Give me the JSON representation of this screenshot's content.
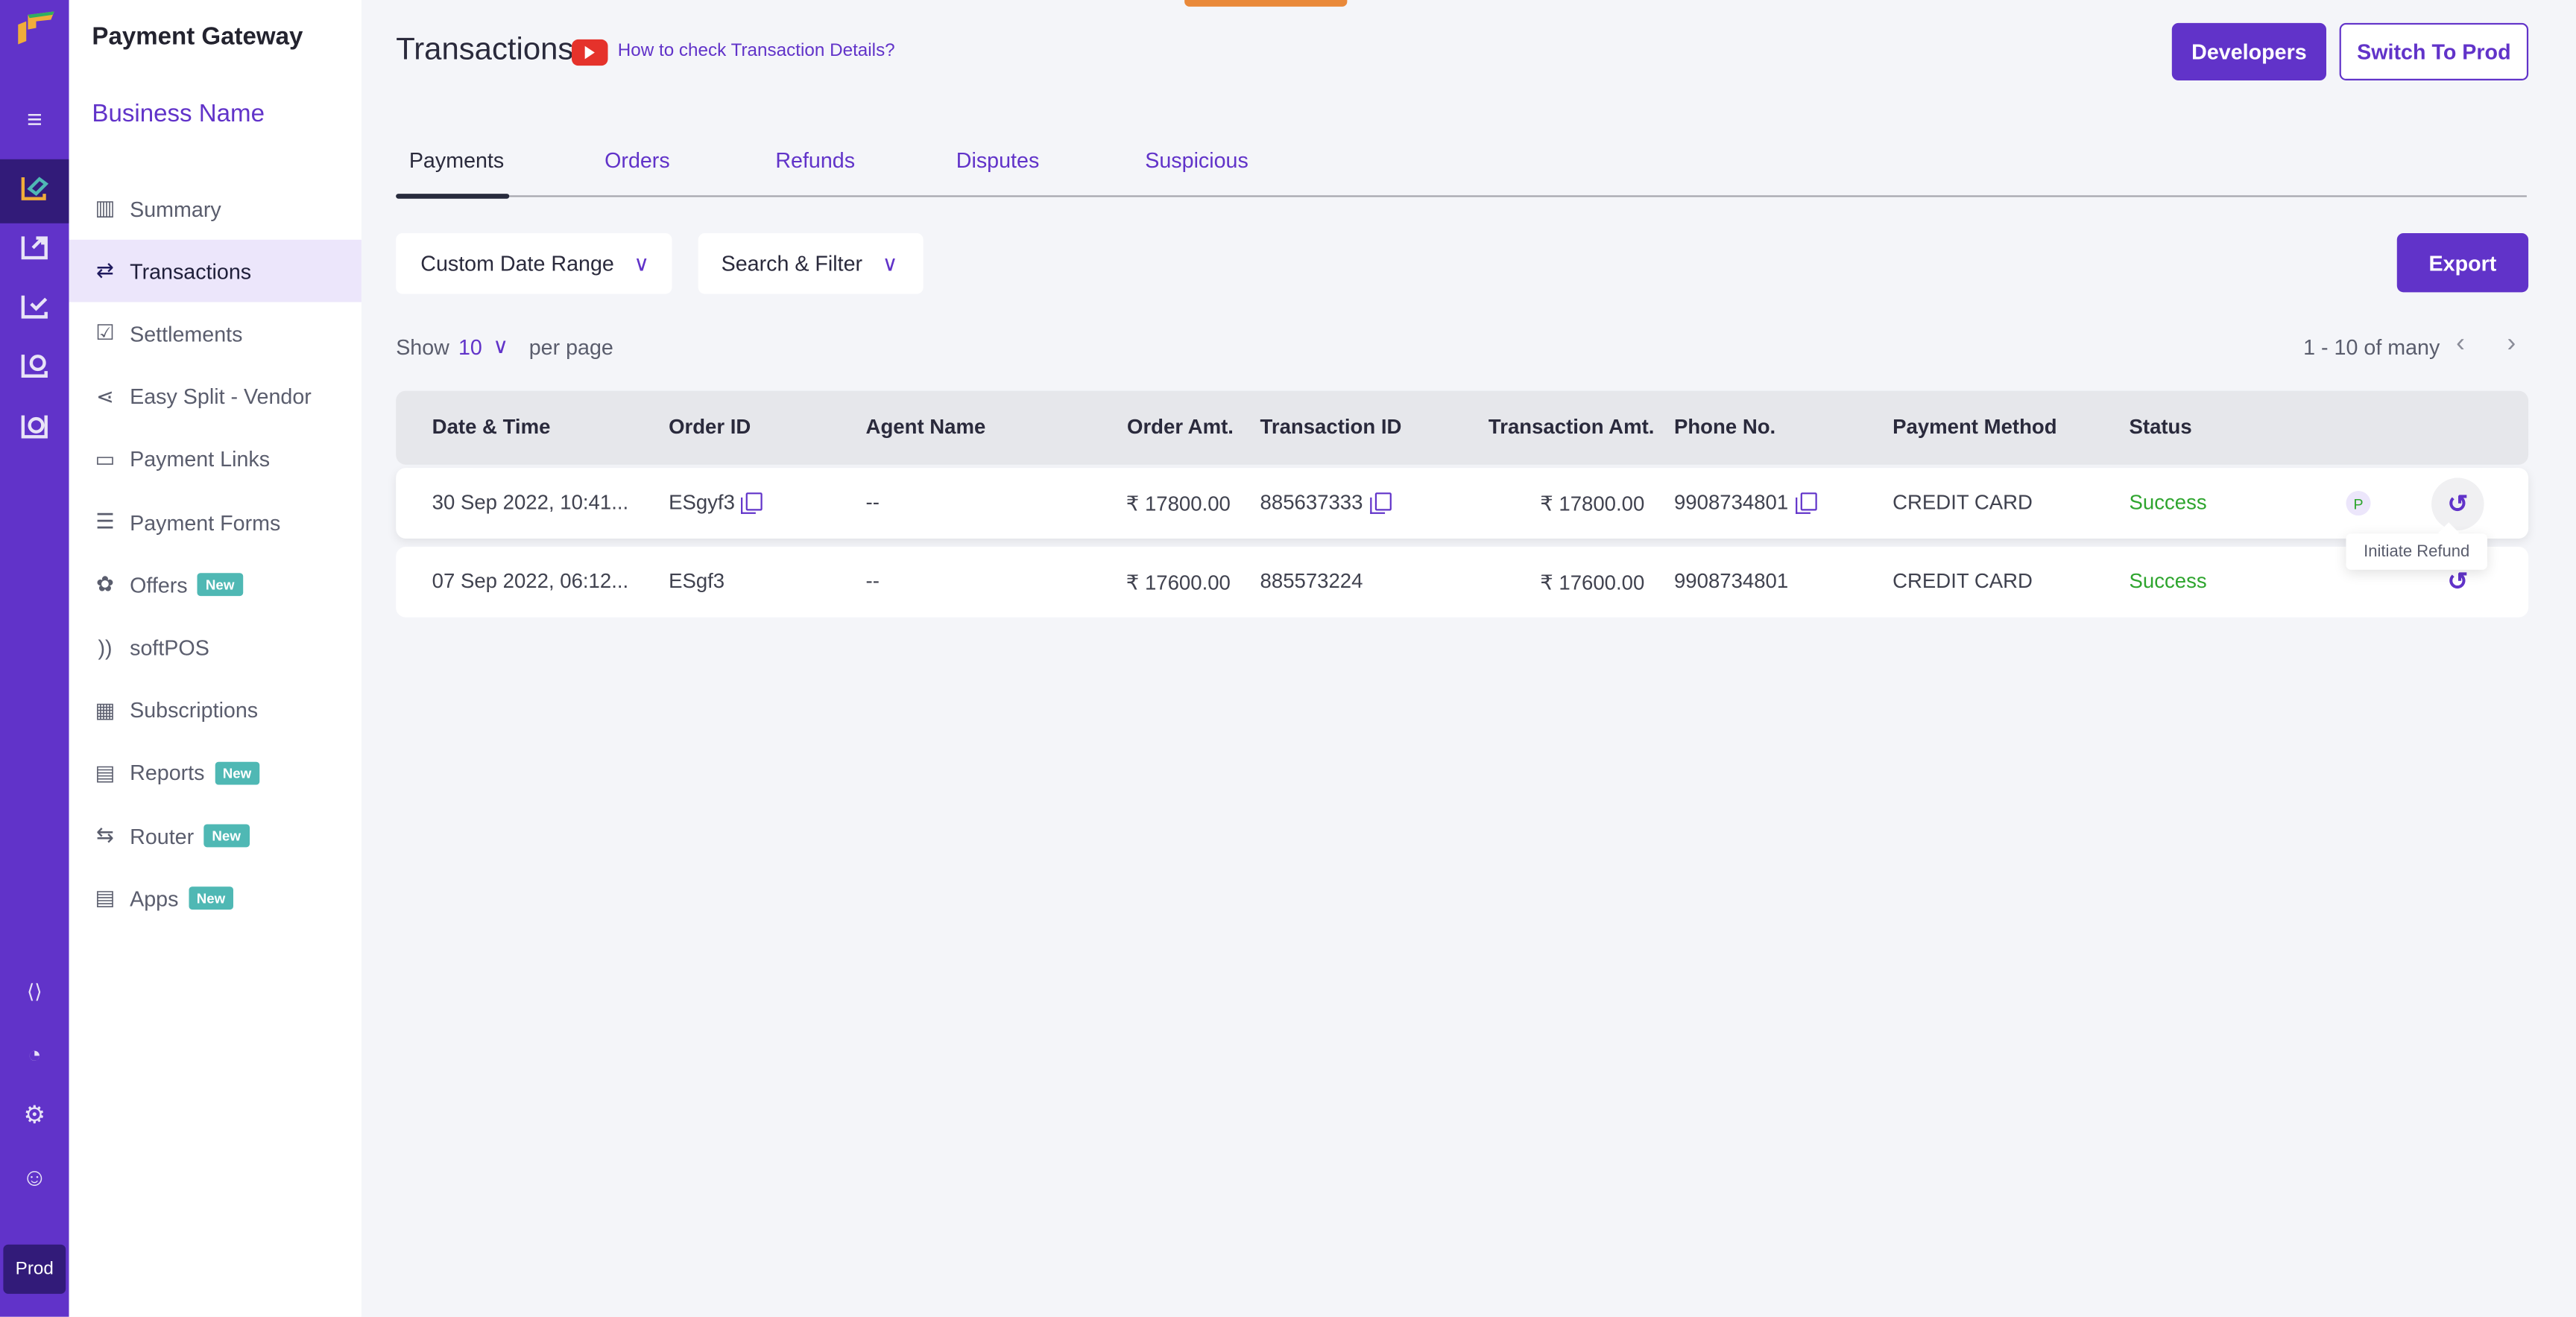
{
  "colors": {
    "brand": "#6133c9",
    "rail_active": "#321b79",
    "success": "#2ea52e",
    "new_badge": "#4fb8b4",
    "youtube": "#e5322b"
  },
  "rail": {
    "icons": [
      "logo-icon",
      "menu-icon",
      "payment-gateway-icon",
      "payouts-icon",
      "verification-icon",
      "recurring-icon",
      "more-products-icon",
      "developer-icon",
      "integrations-icon",
      "settings-icon",
      "profile-icon"
    ],
    "env_label": "Prod"
  },
  "nav": {
    "title": "Payment Gateway",
    "business": "Business Name",
    "items": [
      {
        "label": "Summary",
        "icon": "bar-chart-icon"
      },
      {
        "label": "Transactions",
        "icon": "exchange-icon",
        "active": true
      },
      {
        "label": "Settlements",
        "icon": "list-check-icon"
      },
      {
        "label": "Easy Split - Vendor",
        "icon": "split-icon"
      },
      {
        "label": "Payment Links",
        "icon": "card-link-icon"
      },
      {
        "label": "Payment Forms",
        "icon": "form-icon"
      },
      {
        "label": "Offers",
        "icon": "offer-icon",
        "badge": "New"
      },
      {
        "label": "softPOS",
        "icon": "contactless-icon"
      },
      {
        "label": "Subscriptions",
        "icon": "calendar-icon"
      },
      {
        "label": "Reports",
        "icon": "document-icon",
        "badge": "New"
      },
      {
        "label": "Router",
        "icon": "router-icon",
        "badge": "New"
      },
      {
        "label": "Apps",
        "icon": "apps-icon",
        "badge": "New"
      }
    ]
  },
  "header": {
    "title": "Transactions",
    "help_link": "How to check Transaction Details?",
    "developers": "Developers",
    "switch_prod": "Switch To Prod"
  },
  "tabs": [
    {
      "label": "Payments",
      "active": true
    },
    {
      "label": "Orders"
    },
    {
      "label": "Refunds"
    },
    {
      "label": "Disputes"
    },
    {
      "label": "Suspicious"
    }
  ],
  "filters": {
    "date_range": "Custom Date Range",
    "search": "Search & Filter",
    "export": "Export"
  },
  "paging": {
    "show": "Show",
    "per_page_value": "10",
    "per_page": "per page",
    "range": "1 - 10 of many"
  },
  "table": {
    "columns": [
      "Date & Time",
      "Order ID",
      "Agent Name",
      "Order Amt.",
      "Transaction ID",
      "Transaction Amt.",
      "Phone No.",
      "Payment Method",
      "Status"
    ],
    "rows": [
      {
        "date": "30 Sep 2022, 10:41...",
        "order_id": "ESgyf3",
        "agent": "--",
        "order_amt": "₹ 17800.00",
        "txn_id": "885637333",
        "txn_amt": "₹ 17800.00",
        "phone": "9908734801",
        "method": "CREDIT CARD",
        "status": "Success",
        "badge": "P"
      },
      {
        "date": "07 Sep 2022, 06:12...",
        "order_id": "ESgf3",
        "agent": "--",
        "order_amt": "₹ 17600.00",
        "txn_id": "885573224",
        "txn_amt": "₹ 17600.00",
        "phone": "9908734801",
        "method": "CREDIT CARD",
        "status": "Success"
      }
    ],
    "tooltip": "Initiate Refund"
  }
}
